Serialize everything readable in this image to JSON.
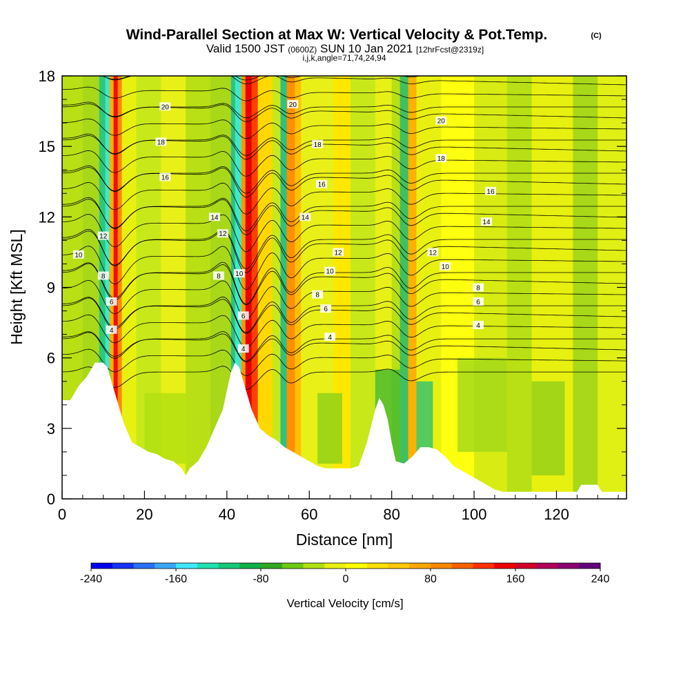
{
  "chart_data": {
    "type": "heatmap",
    "title": "Wind-Parallel Section at Max W: Vertical Velocity & Pot.Temp.",
    "title_mark": "(C)",
    "subtitle": {
      "pre": "Valid 1500 JST ",
      "utc": "(0600Z)",
      "post": " SUN 10 Jan 2021 ",
      "fcst": "[12hrFcst@2319z]"
    },
    "subtitle2": "i,j,k,angle=71,74,24,94",
    "xlabel": "Distance [nm]",
    "ylabel": "Height [Kft MSL]",
    "xlim": [
      0,
      137
    ],
    "ylim": [
      0,
      18
    ],
    "x_ticks": [
      0,
      20,
      40,
      60,
      80,
      100,
      120
    ],
    "y_ticks": [
      0,
      3,
      6,
      9,
      12,
      15,
      18
    ],
    "colorbar": {
      "label": "Vertical Velocity [cm/s]",
      "min": -240,
      "max": 240,
      "step": 20,
      "ticks": [
        "-240",
        "-160",
        "-80",
        "0",
        "80",
        "160",
        "240"
      ],
      "colors": [
        "#0000ee",
        "#1434f5",
        "#2870f8",
        "#3ca8fc",
        "#40e8ff",
        "#20e0b0",
        "#14c878",
        "#10b048",
        "#30a820",
        "#6cc810",
        "#b0e010",
        "#e8f010",
        "#ffff00",
        "#ffe000",
        "#ffc800",
        "#ffa800",
        "#ff8800",
        "#ff6000",
        "#ff3000",
        "#ee0000",
        "#d0002a",
        "#b0005a",
        "#8a0070",
        "#60007a"
      ]
    },
    "contour_labels": [
      {
        "text": "20",
        "x": 25,
        "y": 16.7
      },
      {
        "text": "18",
        "x": 24,
        "y": 15.2
      },
      {
        "text": "16",
        "x": 25,
        "y": 13.7
      },
      {
        "text": "14",
        "x": 37,
        "y": 12.0
      },
      {
        "text": "12",
        "x": 39,
        "y": 11.3
      },
      {
        "text": "12",
        "x": 10,
        "y": 11.2
      },
      {
        "text": "10",
        "x": 4,
        "y": 10.4
      },
      {
        "text": "8",
        "x": 38,
        "y": 9.5
      },
      {
        "text": "8",
        "x": 10,
        "y": 9.5
      },
      {
        "text": "6",
        "x": 12,
        "y": 8.4
      },
      {
        "text": "4",
        "x": 12,
        "y": 7.2
      },
      {
        "text": "20",
        "x": 56,
        "y": 16.8
      },
      {
        "text": "18",
        "x": 62,
        "y": 15.1
      },
      {
        "text": "16",
        "x": 63,
        "y": 13.4
      },
      {
        "text": "14",
        "x": 59,
        "y": 12.0
      },
      {
        "text": "10",
        "x": 43,
        "y": 9.6
      },
      {
        "text": "6",
        "x": 44,
        "y": 7.8
      },
      {
        "text": "4",
        "x": 44,
        "y": 6.4
      },
      {
        "text": "12",
        "x": 67,
        "y": 10.5
      },
      {
        "text": "10",
        "x": 65,
        "y": 9.7
      },
      {
        "text": "8",
        "x": 62,
        "y": 8.7
      },
      {
        "text": "6",
        "x": 64,
        "y": 8.1
      },
      {
        "text": "4",
        "x": 65,
        "y": 6.9
      },
      {
        "text": "20",
        "x": 92,
        "y": 16.1
      },
      {
        "text": "18",
        "x": 92,
        "y": 14.5
      },
      {
        "text": "16",
        "x": 104,
        "y": 13.1
      },
      {
        "text": "14",
        "x": 103,
        "y": 11.8
      },
      {
        "text": "12",
        "x": 90,
        "y": 10.5
      },
      {
        "text": "10",
        "x": 93,
        "y": 9.9
      },
      {
        "text": "8",
        "x": 101,
        "y": 9.0
      },
      {
        "text": "6",
        "x": 101,
        "y": 8.4
      },
      {
        "text": "4",
        "x": 101,
        "y": 7.4
      }
    ],
    "terrain_max_height_kft": 5.8,
    "grid": false
  }
}
